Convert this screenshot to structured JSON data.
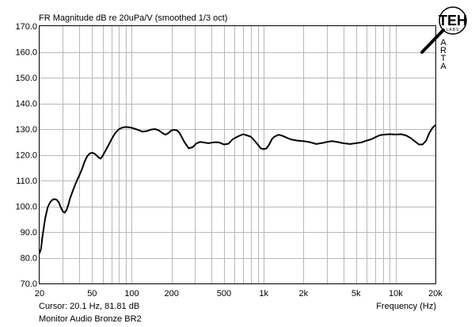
{
  "chart_data": {
    "type": "line",
    "title": "FR Magnitude dB re 20uPa/V (smoothed 1/3 oct)",
    "xlabel": "Frequency (Hz)",
    "xscale": "log",
    "xlim": [
      20,
      20000
    ],
    "ylim": [
      70,
      170
    ],
    "grid": true,
    "y_ticks": [
      "70.0",
      "80.0",
      "90.0",
      "100.0",
      "110.0",
      "120.0",
      "130.0",
      "140.0",
      "150.0",
      "160.0",
      "170.0"
    ],
    "x_ticks": [
      {
        "value": 20,
        "label": "20"
      },
      {
        "value": 50,
        "label": "50"
      },
      {
        "value": 100,
        "label": "100"
      },
      {
        "value": 200,
        "label": "200"
      },
      {
        "value": 500,
        "label": "500"
      },
      {
        "value": 1000,
        "label": "1k"
      },
      {
        "value": 2000,
        "label": "2k"
      },
      {
        "value": 5000,
        "label": "5k"
      },
      {
        "value": 10000,
        "label": "10k"
      },
      {
        "value": 20000,
        "label": "20k"
      }
    ],
    "cursor_text": "Cursor: 20.1 Hz, 81.81 dB",
    "subtitle": "Monitor Audio Bronze BR2",
    "series": [
      {
        "x": [
          20,
          20.5,
          21,
          22,
          23,
          24,
          25,
          26,
          27,
          28,
          29,
          30,
          31,
          32,
          33,
          34,
          36,
          38,
          40,
          42,
          44,
          46,
          48,
          50,
          52,
          54,
          56,
          58,
          60,
          63,
          67,
          71,
          75,
          80,
          85,
          90,
          95,
          100,
          110,
          120,
          130,
          140,
          150,
          160,
          170,
          180,
          190,
          200,
          210,
          220,
          230,
          250,
          270,
          290,
          310,
          330,
          350,
          380,
          400,
          430,
          460,
          500,
          540,
          580,
          620,
          660,
          700,
          750,
          800,
          850,
          900,
          950,
          1000,
          1050,
          1100,
          1150,
          1200,
          1300,
          1400,
          1500,
          1600,
          1800,
          2000,
          2200,
          2500,
          2800,
          3000,
          3300,
          3600,
          4000,
          4500,
          5000,
          5500,
          6000,
          6500,
          7000,
          7500,
          8000,
          9000,
          10000,
          11000,
          12000,
          13000,
          14000,
          15000,
          16000,
          17000,
          18000,
          19000,
          20000
        ],
        "y": [
          81.8,
          83.5,
          88,
          95,
          99.5,
          101.5,
          102.5,
          102.8,
          102.5,
          101.5,
          99.5,
          98,
          97.5,
          98.5,
          100.5,
          103,
          106.5,
          109.5,
          112,
          114.5,
          117.5,
          119.5,
          120.5,
          120.8,
          120.5,
          119.8,
          119,
          118.5,
          119.5,
          121.5,
          124,
          126.5,
          128.5,
          130,
          130.6,
          130.8,
          130.7,
          130.5,
          129.8,
          129,
          129.2,
          129.8,
          130,
          129.5,
          128.5,
          127.8,
          128.5,
          129.5,
          129.7,
          129.5,
          128.5,
          125,
          122.5,
          123,
          124.5,
          125,
          124.8,
          124.5,
          124.7,
          124.9,
          124.8,
          124,
          124.3,
          126,
          126.8,
          127.5,
          128,
          127.5,
          127,
          125.5,
          124,
          122.5,
          122.2,
          122.5,
          124,
          126,
          127,
          127.8,
          127.3,
          126.6,
          126,
          125.5,
          125.3,
          125,
          124.2,
          124.6,
          125,
          125.3,
          125,
          124.5,
          124.2,
          124.5,
          124.8,
          125.5,
          126,
          126.8,
          127.5,
          127.8,
          128,
          127.9,
          128,
          127.5,
          126.5,
          125.2,
          124,
          124,
          125.5,
          128.5,
          130.5,
          131.5
        ]
      }
    ]
  },
  "logo": {
    "letters": "TEH",
    "small": "LABS",
    "side_text": [
      "A",
      "R",
      "T",
      "A"
    ]
  }
}
